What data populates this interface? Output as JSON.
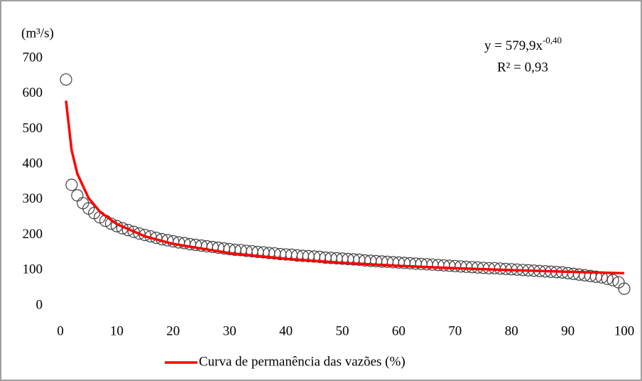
{
  "chart_data": {
    "type": "scatter",
    "y_label": "(m³/s)",
    "annotations": [
      "y = 579,9x",
      "-0,40",
      "R² = 0,93"
    ],
    "xlim": [
      0,
      100
    ],
    "xticks": [
      0,
      10,
      20,
      30,
      40,
      50,
      60,
      70,
      80,
      90,
      100
    ],
    "ylim": [
      0,
      700
    ],
    "yticks": [
      0,
      100,
      200,
      300,
      400,
      500,
      600,
      700
    ],
    "grid": false,
    "legend": "bottom",
    "series": [
      {
        "type": "scatter",
        "color": "#404040",
        "x": [
          1,
          2,
          3,
          4,
          5,
          6,
          7,
          8,
          9,
          10,
          11,
          12,
          13,
          14,
          15,
          16,
          17,
          18,
          19,
          20,
          21,
          22,
          23,
          24,
          25,
          26,
          27,
          28,
          29,
          30,
          31,
          32,
          33,
          34,
          35,
          36,
          37,
          38,
          39,
          40,
          41,
          42,
          43,
          44,
          45,
          46,
          47,
          48,
          49,
          50,
          51,
          52,
          53,
          54,
          55,
          56,
          57,
          58,
          59,
          60,
          61,
          62,
          63,
          64,
          65,
          66,
          67,
          68,
          69,
          70,
          71,
          72,
          73,
          74,
          75,
          76,
          77,
          78,
          79,
          80,
          81,
          82,
          83,
          84,
          85,
          86,
          87,
          88,
          89,
          90,
          91,
          92,
          93,
          94,
          95,
          96,
          97,
          98,
          99,
          100
        ],
        "values": [
          640,
          342,
          312,
          290,
          275,
          262,
          250,
          240,
          232,
          225,
          219,
          214,
          209,
          204,
          200,
          196,
          192,
          188,
          185,
          182,
          179,
          177,
          174,
          172,
          170,
          168,
          166,
          164,
          162,
          160,
          158,
          157,
          155,
          154,
          152,
          151,
          149,
          148,
          146,
          145,
          144,
          142,
          141,
          140,
          139,
          138,
          136,
          135,
          134,
          133,
          132,
          131,
          130,
          128,
          127,
          126,
          125,
          124,
          123,
          122,
          121,
          120,
          119,
          118,
          117,
          116,
          115,
          114,
          113,
          112,
          111,
          110,
          109,
          108,
          107,
          106,
          106,
          105,
          104,
          103,
          102,
          101,
          100,
          99,
          98,
          97,
          96,
          95,
          94,
          92,
          90,
          88,
          86,
          84,
          82,
          80,
          76,
          72,
          66,
          48
        ]
      },
      {
        "type": "line",
        "name": "Curva de permanência das vazões (%)",
        "color": "#ff0000",
        "x": [
          1,
          2,
          3,
          5,
          7,
          10,
          15,
          20,
          30,
          40,
          50,
          60,
          70,
          80,
          90,
          100
        ],
        "values": [
          579.9,
          439.5,
          373.7,
          304.6,
          266.2,
          230.9,
          196.3,
          174.9,
          148.7,
          132.6,
          121.3,
          112.7,
          106.0,
          100.5,
          95.9,
          91.9
        ]
      }
    ]
  }
}
